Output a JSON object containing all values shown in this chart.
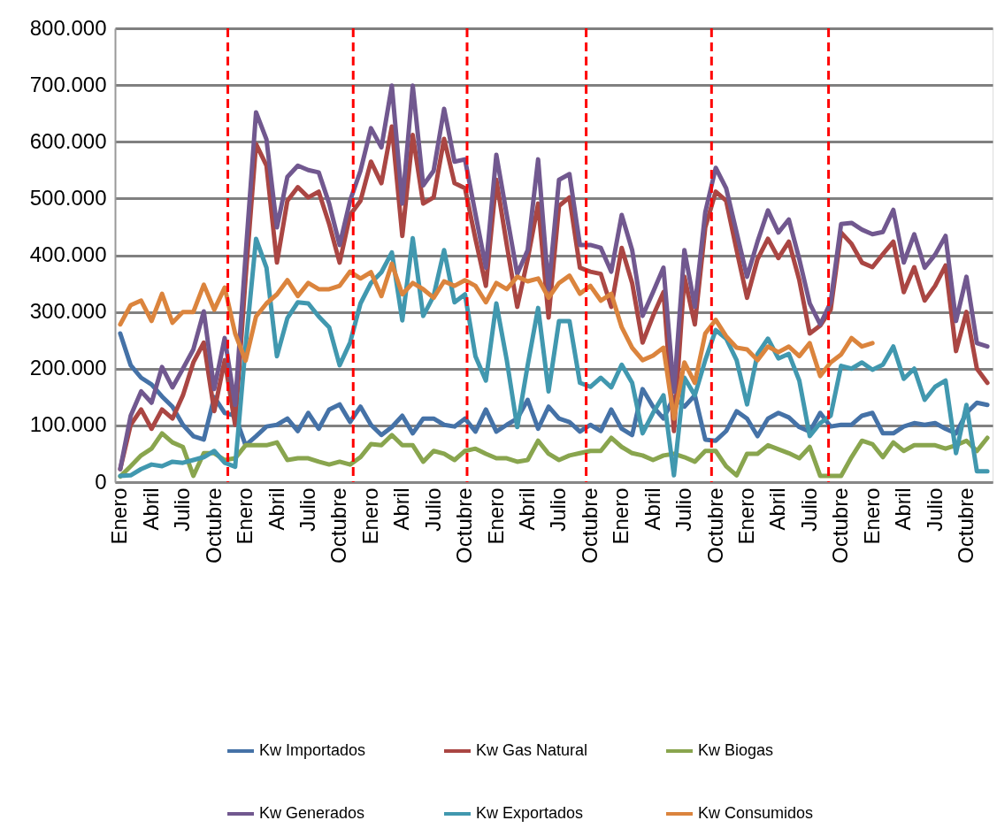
{
  "chart_data": {
    "type": "line",
    "legend": "bottom",
    "grid": "y",
    "marker": "none",
    "line_style": "solid",
    "categories": [
      "Enero",
      null,
      null,
      "Abril",
      null,
      null,
      "Julio",
      null,
      null,
      "Octubre",
      null,
      null,
      "Enero",
      null,
      null,
      "Abril",
      null,
      null,
      "Julio",
      null,
      null,
      "Octubre",
      null,
      null,
      "Enero",
      null,
      null,
      "Abril",
      null,
      null,
      "Julio",
      null,
      null,
      "Octubre",
      null,
      null,
      "Enero",
      null,
      null,
      "Abril",
      null,
      null,
      "Julio",
      null,
      null,
      "Octubre",
      null,
      null,
      "Enero",
      null,
      null,
      "Abril",
      null,
      null,
      "Julio",
      null,
      null,
      "Octubre",
      null,
      null,
      "Enero",
      null,
      null,
      "Abril",
      null,
      null,
      "Julio",
      null,
      null,
      "Octubre",
      null,
      null,
      "Enero",
      null,
      null,
      "Abril",
      null,
      null,
      "Julio",
      null,
      null,
      "Octubre",
      null,
      null
    ],
    "ylim": [
      0,
      800000
    ],
    "yticks": [
      0,
      {
        "value": 100000,
        "label": "100.000"
      },
      {
        "value": 200000,
        "label": "200.000"
      },
      {
        "value": 300000,
        "label": "300.000"
      },
      {
        "value": 400000,
        "label": "400.000"
      },
      {
        "value": 500000,
        "label": "500.000"
      },
      {
        "value": 600000,
        "label": "600.000"
      },
      {
        "value": 700000,
        "label": "700.000"
      },
      {
        "value": 800000,
        "label": "800.000"
      }
    ],
    "series": [
      {
        "name": "Kw Importados",
        "color": "#4572a7",
        "values": [
          262000,
          206000,
          184000,
          172000,
          151000,
          133000,
          101000,
          81000,
          75000,
          150000,
          122000,
          117000,
          65000,
          81000,
          98000,
          101000,
          112000,
          90000,
          122000,
          94000,
          128000,
          137000,
          106000,
          133000,
          101000,
          83000,
          97000,
          117000,
          86000,
          112000,
          112000,
          101000,
          98000,
          112000,
          89000,
          128000,
          89000,
          101000,
          112000,
          145000,
          94000,
          133000,
          112000,
          106000,
          89000,
          101000,
          90000,
          128000,
          94000,
          83000,
          164000,
          133000,
          112000,
          150000,
          133000,
          153000,
          75000,
          73000,
          90000,
          125000,
          112000,
          81000,
          112000,
          122000,
          114000,
          97000,
          89000,
          122000,
          98000,
          101000,
          101000,
          117000,
          122000,
          86000,
          86000,
          98000,
          104000,
          101000,
          104000,
          94000,
          86000,
          122000,
          140000,
          136000
        ]
      },
      {
        "name": "Kw Gas Natural",
        "color": "#aa4643",
        "values": [
          23000,
          101000,
          128000,
          94000,
          128000,
          112000,
          153000,
          211000,
          246000,
          125000,
          215000,
          101000,
          360000,
          596000,
          558000,
          387000,
          496000,
          520000,
          502000,
          512000,
          455000,
          387000,
          471000,
          496000,
          565000,
          527000,
          627000,
          434000,
          612000,
          491000,
          502000,
          605000,
          527000,
          518000,
          429000,
          346000,
          533000,
          418000,
          309000,
          393000,
          491000,
          290000,
          487000,
          502000,
          378000,
          371000,
          367000,
          309000,
          413000,
          351000,
          246000,
          293000,
          335000,
          90000,
          362000,
          278000,
          449000,
          512000,
          496000,
          409000,
          325000,
          393000,
          429000,
          395000,
          424000,
          356000,
          262000,
          276000,
          304000,
          440000,
          420000,
          387000,
          379000,
          402000,
          424000,
          335000,
          379000,
          320000,
          346000,
          382000,
          231000,
          300000,
          200000,
          175000
        ]
      },
      {
        "name": "Kw Biogas",
        "color": "#89a54e",
        "values": [
          10000,
          28000,
          47000,
          59000,
          86000,
          70000,
          62000,
          11000,
          51000,
          51000,
          39000,
          42000,
          65000,
          65000,
          65000,
          70000,
          39000,
          42000,
          42000,
          36000,
          31000,
          36000,
          31000,
          44000,
          67000,
          65000,
          83000,
          65000,
          65000,
          36000,
          55000,
          50000,
          39000,
          55000,
          59000,
          50000,
          42000,
          42000,
          36000,
          39000,
          73000,
          50000,
          39000,
          47000,
          51000,
          55000,
          55000,
          78000,
          62000,
          51000,
          47000,
          39000,
          47000,
          50000,
          44000,
          36000,
          55000,
          55000,
          28000,
          12000,
          50000,
          50000,
          65000,
          58000,
          51000,
          42000,
          62000,
          11000,
          11000,
          11000,
          44000,
          73000,
          67000,
          44000,
          70000,
          55000,
          65000,
          65000,
          65000,
          59000,
          65000,
          73000,
          55000,
          78000
        ]
      },
      {
        "name": "Kw Generados",
        "color": "#71588f",
        "values": [
          23000,
          117000,
          160000,
          140000,
          203000,
          167000,
          200000,
          234000,
          301000,
          164000,
          254000,
          136000,
          400000,
          652000,
          604000,
          449000,
          538000,
          558000,
          550000,
          546000,
          491000,
          418000,
          496000,
          549000,
          624000,
          590000,
          699000,
          491000,
          699000,
          523000,
          549000,
          658000,
          565000,
          569000,
          473000,
          378000,
          577000,
          471000,
          367000,
          409000,
          569000,
          340000,
          533000,
          543000,
          418000,
          418000,
          413000,
          371000,
          471000,
          409000,
          293000,
          335000,
          378000,
          159000,
          409000,
          309000,
          476000,
          554000,
          518000,
          440000,
          362000,
          424000,
          479000,
          440000,
          463000,
          393000,
          315000,
          278000,
          317000,
          455000,
          457000,
          445000,
          437000,
          441000,
          480000,
          387000,
          437000,
          378000,
          401000,
          434000,
          284000,
          362000,
          245000,
          239000
        ]
      },
      {
        "name": "Kw Exportados",
        "color": "#4198af",
        "values": [
          11000,
          12000,
          23000,
          31000,
          28000,
          36000,
          34000,
          39000,
          44000,
          55000,
          34000,
          27000,
          240000,
          429000,
          378000,
          222000,
          289000,
          317000,
          315000,
          292000,
          273000,
          206000,
          246000,
          315000,
          351000,
          370000,
          405000,
          285000,
          430000,
          293000,
          328000,
          409000,
          317000,
          331000,
          222000,
          179000,
          315000,
          215000,
          97000,
          206000,
          307000,
          160000,
          284000,
          284000,
          175000,
          168000,
          184000,
          167000,
          207000,
          175000,
          86000,
          122000,
          153000,
          12000,
          184000,
          153000,
          215000,
          268000,
          253000,
          215000,
          137000,
          226000,
          253000,
          218000,
          226000,
          179000,
          81000,
          104000,
          117000,
          205000,
          200000,
          211000,
          198000,
          207000,
          239000,
          182000,
          200000,
          145000,
          168000,
          179000,
          51000,
          136000,
          19000,
          19000
        ]
      },
      {
        "name": "Kw Consumidos",
        "color": "#db843d",
        "values": [
          278000,
          312000,
          320000,
          284000,
          332000,
          281000,
          300000,
          300000,
          348000,
          304000,
          343000,
          262000,
          214000,
          292000,
          315000,
          331000,
          356000,
          328000,
          351000,
          340000,
          340000,
          346000,
          371000,
          359000,
          370000,
          328000,
          385000,
          331000,
          351000,
          340000,
          325000,
          354000,
          346000,
          356000,
          346000,
          317000,
          351000,
          340000,
          362000,
          354000,
          359000,
          325000,
          351000,
          364000,
          332000,
          346000,
          320000,
          332000,
          273000,
          237000,
          215000,
          223000,
          237000,
          112000,
          211000,
          175000,
          262000,
          286000,
          257000,
          237000,
          234000,
          215000,
          239000,
          229000,
          239000,
          222000,
          245000,
          187000,
          211000,
          225000,
          254000,
          239000,
          245000,
          null,
          null,
          null,
          null,
          null,
          null,
          null,
          null,
          null,
          null,
          null
        ]
      }
    ]
  }
}
